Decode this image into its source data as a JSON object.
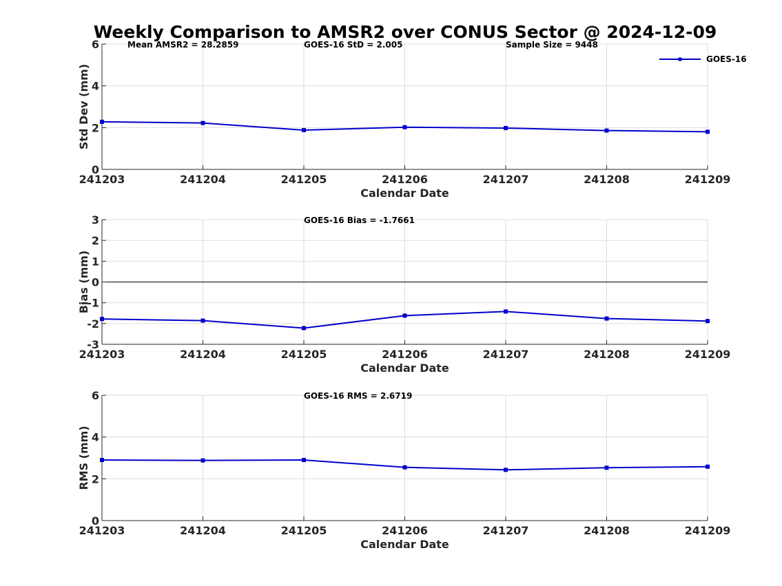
{
  "figure": {
    "title": "Weekly Comparison to AMSR2 over CONUS Sector @ 2024-12-09",
    "series_color": "#0000cc"
  },
  "chart_data": [
    {
      "type": "line",
      "categories": [
        "241203",
        "241204",
        "241205",
        "241206",
        "241207",
        "241208",
        "241209"
      ],
      "series": [
        {
          "name": "GOES-16",
          "values": [
            2.28,
            2.22,
            1.88,
            2.02,
            1.98,
            1.86,
            1.8
          ]
        }
      ],
      "xlabel": "Calendar Date",
      "ylabel": "Std Dev (mm)",
      "ylim": [
        0,
        6
      ],
      "yticks": [
        0,
        2,
        4,
        6
      ],
      "annotations": [
        "Mean AMSR2 = 28.2859",
        "GOES-16 StD = 2.005",
        "Sample Size = 9448"
      ],
      "legend": {
        "labels": [
          "GOES-16"
        ],
        "location": "top-right"
      },
      "grid": true
    },
    {
      "type": "line",
      "categories": [
        "241203",
        "241204",
        "241205",
        "241206",
        "241207",
        "241208",
        "241209"
      ],
      "series": [
        {
          "name": "GOES-16",
          "values": [
            -1.78,
            -1.86,
            -2.22,
            -1.62,
            -1.42,
            -1.76,
            -1.88
          ]
        }
      ],
      "xlabel": "Calendar Date",
      "ylabel": "Bias (mm)",
      "ylim": [
        -3,
        3
      ],
      "yticks": [
        -3,
        -2,
        -1,
        0,
        1,
        2,
        3
      ],
      "reference_line": 0,
      "annotations": [
        "GOES-16 Bias  = -1.7661"
      ],
      "grid": true
    },
    {
      "type": "line",
      "categories": [
        "241203",
        "241204",
        "241205",
        "241206",
        "241207",
        "241208",
        "241209"
      ],
      "series": [
        {
          "name": "GOES-16",
          "values": [
            2.9,
            2.88,
            2.9,
            2.55,
            2.43,
            2.53,
            2.58
          ]
        }
      ],
      "xlabel": "Calendar Date",
      "ylabel": "RMS (mm)",
      "ylim": [
        0,
        6
      ],
      "yticks": [
        0,
        2,
        4,
        6
      ],
      "annotations": [
        "GOES-16 RMS = 2.6719"
      ],
      "grid": true
    }
  ]
}
